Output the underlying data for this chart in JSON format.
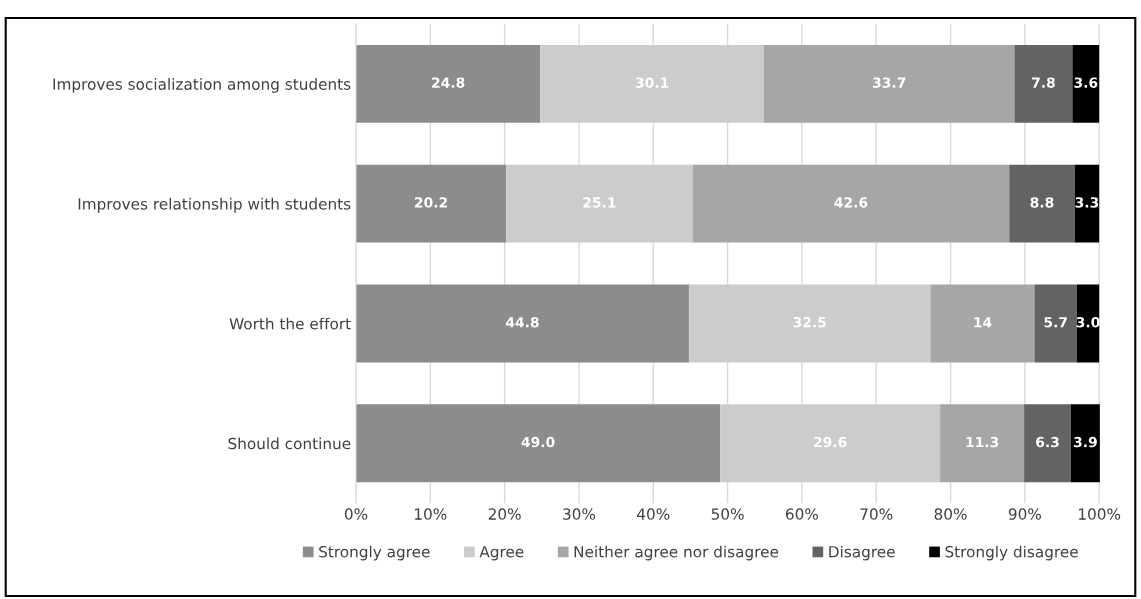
{
  "chart_data": {
    "type": "bar",
    "orientation": "horizontal",
    "stacked": true,
    "categories": [
      "Improves socialization among students",
      "Improves relationship with students",
      "Worth the effort",
      "Should continue"
    ],
    "series": [
      {
        "name": "Strongly agree",
        "color": "#8c8c8c",
        "values": [
          24.8,
          20.2,
          44.8,
          49.0
        ],
        "value_labels": [
          "24.8",
          "20.2",
          "44.8",
          "49.0"
        ]
      },
      {
        "name": "Agree",
        "color": "#cccccc",
        "values": [
          30.1,
          25.1,
          32.5,
          29.6
        ],
        "value_labels": [
          "30.1",
          "25.1",
          "32.5",
          "29.6"
        ]
      },
      {
        "name": "Neither agree nor disagree",
        "color": "#a6a6a6",
        "values": [
          33.7,
          42.6,
          14,
          11.3
        ],
        "value_labels": [
          "33.7",
          "42.6",
          "14",
          "11.3"
        ]
      },
      {
        "name": "Disagree",
        "color": "#636363",
        "values": [
          7.8,
          8.8,
          5.7,
          6.3
        ],
        "value_labels": [
          "7.8",
          "8.8",
          "5.7",
          "6.3"
        ]
      },
      {
        "name": "Strongly disagree",
        "color": "#000000",
        "values": [
          3.6,
          3.3,
          3.0,
          3.9
        ],
        "value_labels": [
          "3.6",
          "3.3",
          "3.0",
          "3.9"
        ]
      }
    ],
    "xlim": [
      0,
      100.1
    ],
    "xticks": [
      {
        "value": 0,
        "label": "0%"
      },
      {
        "value": 10,
        "label": "10%"
      },
      {
        "value": 20,
        "label": "20%"
      },
      {
        "value": 30,
        "label": "30%"
      },
      {
        "value": 40,
        "label": "40%"
      },
      {
        "value": 50,
        "label": "50%"
      },
      {
        "value": 60,
        "label": "60%"
      },
      {
        "value": 70,
        "label": "70%"
      },
      {
        "value": 80,
        "label": "80%"
      },
      {
        "value": 90,
        "label": "90%"
      },
      {
        "value": 100,
        "label": "100%"
      }
    ],
    "grid": "x",
    "legend": "bottom"
  }
}
